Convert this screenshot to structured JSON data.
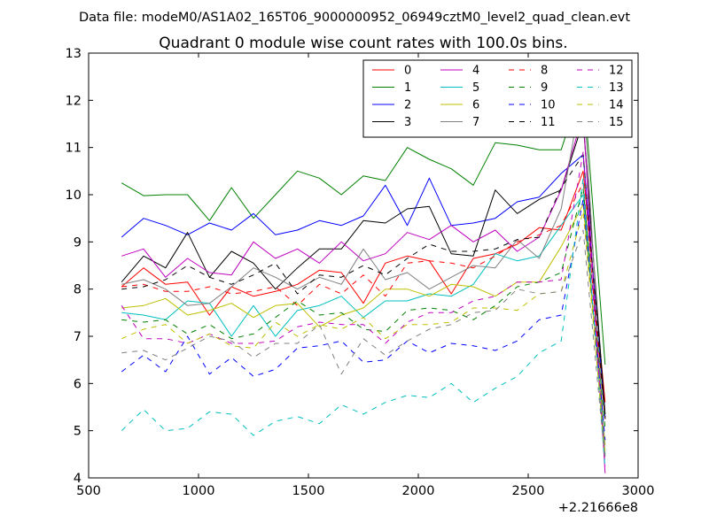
{
  "suptitle": "Data file: modeM0/AS1A02_165T06_9000000952_06949cztM0_level2_quad_clean.evt",
  "chart_data": {
    "type": "line",
    "title": "Quadrant 0 module wise count rates with 100.0s bins.",
    "xlabel": "",
    "ylabel": "",
    "x_offset_label": "+2.21666e8",
    "xlim": [
      500,
      3000
    ],
    "ylim": [
      4,
      13
    ],
    "x_ticks": [
      500,
      1000,
      1500,
      2000,
      2500,
      3000
    ],
    "x_tick_labels": [
      "500",
      "1000",
      "1500",
      "2000",
      "2500",
      "3000"
    ],
    "y_ticks": [
      4,
      5,
      6,
      7,
      8,
      9,
      10,
      11,
      12,
      13
    ],
    "y_tick_labels": [
      "4",
      "5",
      "6",
      "7",
      "8",
      "9",
      "10",
      "11",
      "12",
      "13"
    ],
    "grid": false,
    "legend_position": "top-right",
    "legend_columns": 4,
    "x": [
      650,
      750,
      850,
      950,
      1050,
      1150,
      1250,
      1350,
      1450,
      1550,
      1650,
      1750,
      1850,
      1950,
      2050,
      2150,
      2250,
      2350,
      2450,
      2550,
      2650,
      2750,
      2850
    ],
    "series": [
      {
        "name": "0",
        "color": "#ff0000",
        "dashed": false,
        "values": [
          8.05,
          8.45,
          8.1,
          8.15,
          7.45,
          8.05,
          7.85,
          7.95,
          8.1,
          8.4,
          8.35,
          7.7,
          8.55,
          8.7,
          8.6,
          7.9,
          8.65,
          8.75,
          8.95,
          9.3,
          9.25,
          10.5,
          5.6
        ]
      },
      {
        "name": "1",
        "color": "#008000",
        "dashed": false,
        "values": [
          10.25,
          9.98,
          10.0,
          10.0,
          9.45,
          10.15,
          9.5,
          10.0,
          10.5,
          10.35,
          10.0,
          10.4,
          10.3,
          11.0,
          10.75,
          10.55,
          10.2,
          11.1,
          11.05,
          10.95,
          10.95,
          12.4,
          6.4
        ]
      },
      {
        "name": "2",
        "color": "#0000ff",
        "dashed": false,
        "values": [
          9.1,
          9.5,
          9.35,
          9.15,
          9.4,
          9.25,
          9.6,
          9.15,
          9.25,
          9.45,
          9.35,
          9.55,
          10.2,
          9.35,
          10.35,
          9.35,
          9.4,
          9.5,
          9.85,
          9.95,
          10.45,
          10.85,
          5.3
        ]
      },
      {
        "name": "3",
        "color": "#000000",
        "dashed": false,
        "values": [
          8.15,
          8.7,
          8.45,
          9.2,
          8.25,
          8.8,
          8.55,
          8.0,
          8.45,
          8.85,
          8.85,
          9.45,
          9.4,
          9.7,
          9.75,
          8.75,
          8.7,
          10.1,
          9.6,
          9.9,
          10.1,
          11.55,
          5.35
        ]
      },
      {
        "name": "4",
        "color": "#bf00bf",
        "dashed": false,
        "values": [
          8.7,
          8.85,
          8.25,
          8.65,
          8.35,
          8.3,
          9.0,
          8.65,
          8.85,
          8.55,
          9.0,
          8.6,
          8.75,
          9.2,
          9.05,
          9.35,
          9.0,
          9.25,
          8.8,
          9.1,
          10.1,
          11.7,
          4.1
        ]
      },
      {
        "name": "5",
        "color": "#00bfbf",
        "dashed": false,
        "values": [
          7.5,
          7.45,
          7.35,
          7.75,
          7.7,
          7.0,
          7.65,
          7.0,
          7.55,
          7.65,
          7.85,
          7.4,
          7.75,
          7.75,
          7.9,
          7.85,
          8.1,
          8.75,
          8.6,
          8.7,
          9.35,
          10.0,
          4.5
        ]
      },
      {
        "name": "6",
        "color": "#bfbf00",
        "dashed": false,
        "values": [
          7.6,
          7.65,
          7.8,
          7.45,
          7.55,
          7.7,
          7.4,
          7.65,
          7.7,
          7.2,
          7.45,
          7.6,
          8.0,
          8.0,
          7.85,
          8.1,
          8.05,
          7.85,
          8.15,
          8.15,
          8.9,
          9.8,
          4.7
        ]
      },
      {
        "name": "7",
        "color": "#808080",
        "dashed": false,
        "values": [
          8.1,
          8.2,
          8.0,
          7.65,
          7.7,
          8.05,
          8.45,
          8.25,
          8.0,
          8.25,
          8.1,
          8.85,
          8.2,
          8.35,
          8.0,
          8.25,
          8.5,
          8.45,
          9.05,
          8.65,
          9.7,
          12.35,
          4.45
        ]
      },
      {
        "name": "8",
        "color": "#ff0000",
        "dashed": true,
        "values": [
          8.05,
          8.1,
          7.95,
          7.95,
          8.05,
          7.9,
          7.95,
          8.05,
          7.65,
          8.1,
          7.9,
          8.3,
          7.85,
          8.55,
          8.6,
          8.55,
          8.45,
          8.7,
          9.0,
          9.15,
          9.35,
          10.25,
          5.25
        ]
      },
      {
        "name": "9",
        "color": "#008000",
        "dashed": true,
        "values": [
          7.35,
          7.3,
          7.35,
          7.05,
          7.25,
          6.95,
          7.05,
          7.4,
          7.75,
          7.45,
          7.5,
          7.15,
          7.1,
          7.55,
          7.6,
          7.55,
          7.35,
          7.65,
          8.05,
          8.15,
          8.35,
          10.15,
          5.05
        ]
      },
      {
        "name": "10",
        "color": "#0000ff",
        "dashed": true,
        "values": [
          6.25,
          6.6,
          6.25,
          7.0,
          6.2,
          6.55,
          6.15,
          6.3,
          6.75,
          6.8,
          6.9,
          6.45,
          6.5,
          6.9,
          6.65,
          6.85,
          6.8,
          6.7,
          6.9,
          7.35,
          7.45,
          9.9,
          4.8
        ]
      },
      {
        "name": "11",
        "color": "#000000",
        "dashed": true,
        "values": [
          8.0,
          8.05,
          8.2,
          8.5,
          8.25,
          8.1,
          8.3,
          8.55,
          7.9,
          8.3,
          8.25,
          8.5,
          8.3,
          8.65,
          8.95,
          8.8,
          8.8,
          8.85,
          9.05,
          9.1,
          10.15,
          10.85,
          5.25
        ]
      },
      {
        "name": "12",
        "color": "#bf00bf",
        "dashed": true,
        "values": [
          7.65,
          6.95,
          6.95,
          6.85,
          7.05,
          6.85,
          6.85,
          6.9,
          7.2,
          7.3,
          7.25,
          7.25,
          6.85,
          7.3,
          7.5,
          7.5,
          7.75,
          7.85,
          8.15,
          8.15,
          8.2,
          10.9,
          4.25
        ]
      },
      {
        "name": "13",
        "color": "#00bfbf",
        "dashed": true,
        "values": [
          5.0,
          5.45,
          5.0,
          5.05,
          5.4,
          5.35,
          4.9,
          5.2,
          5.3,
          5.15,
          5.55,
          5.35,
          5.6,
          5.75,
          5.7,
          6.0,
          5.6,
          5.9,
          6.15,
          6.65,
          6.9,
          10.35,
          4.2
        ]
      },
      {
        "name": "14",
        "color": "#bfbf00",
        "dashed": true,
        "values": [
          6.95,
          7.15,
          7.25,
          6.85,
          7.05,
          6.8,
          6.75,
          7.3,
          7.0,
          7.25,
          7.15,
          7.4,
          6.95,
          7.25,
          7.25,
          7.3,
          7.6,
          7.6,
          7.55,
          7.9,
          7.95,
          9.65,
          4.5
        ]
      },
      {
        "name": "15",
        "color": "#808080",
        "dashed": true,
        "values": [
          6.65,
          6.7,
          6.5,
          6.75,
          7.0,
          6.9,
          6.55,
          6.85,
          6.85,
          7.25,
          6.2,
          6.95,
          6.6,
          6.9,
          7.15,
          7.25,
          7.5,
          7.55,
          8.0,
          7.9,
          7.95,
          9.25,
          4.35
        ]
      }
    ]
  }
}
